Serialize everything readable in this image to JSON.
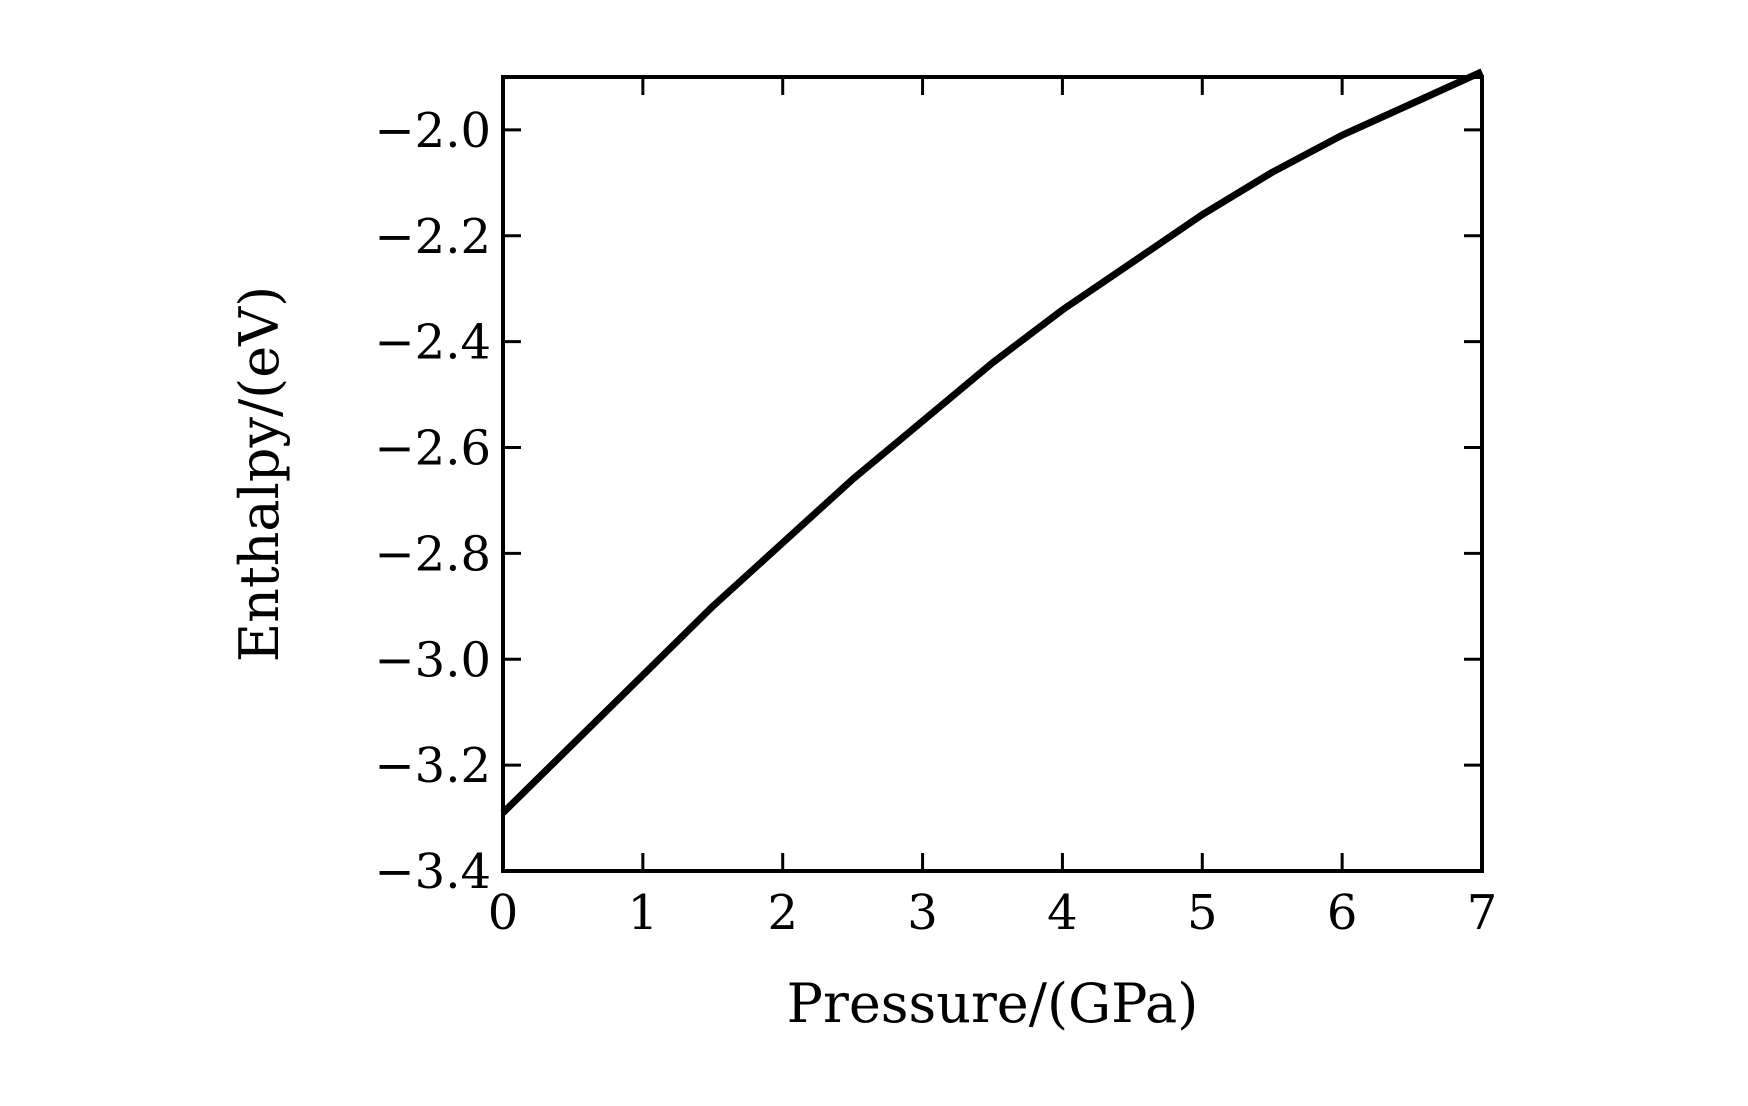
{
  "chart_data": {
    "type": "line",
    "title": "",
    "xlabel": "Pressure/(GPa)",
    "ylabel": "Enthalpy/(eV)",
    "xlim": [
      0,
      7
    ],
    "ylim": [
      -3.4,
      -1.9
    ],
    "xticks": [
      0,
      1,
      2,
      3,
      4,
      5,
      6,
      7
    ],
    "yticks": [
      -3.4,
      -3.2,
      -3.0,
      -2.8,
      -2.6,
      -2.4,
      -2.2,
      -2.0
    ],
    "xtick_labels": [
      "0",
      "1",
      "2",
      "3",
      "4",
      "5",
      "6",
      "7"
    ],
    "ytick_labels": [
      "−3.4",
      "−3.2",
      "−3.0",
      "−2.8",
      "−2.6",
      "−2.4",
      "−2.2",
      "−2.0"
    ],
    "grid": false,
    "series": [
      {
        "color": "#000000",
        "x": [
          0,
          0.5,
          1,
          1.5,
          2,
          2.5,
          3,
          3.5,
          4,
          4.5,
          5,
          5.5,
          6,
          6.5,
          7
        ],
        "y": [
          -3.29,
          -3.16,
          -3.03,
          -2.9,
          -2.78,
          -2.66,
          -2.55,
          -2.44,
          -2.34,
          -2.25,
          -2.16,
          -2.08,
          -2.01,
          -1.95,
          -1.89
        ]
      }
    ]
  }
}
